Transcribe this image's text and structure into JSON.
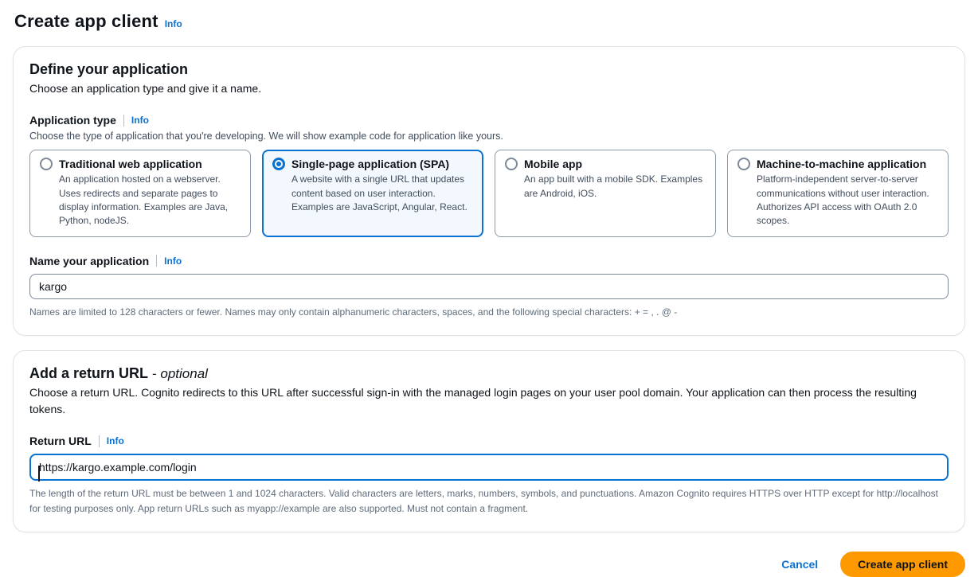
{
  "page": {
    "title": "Create app client",
    "title_info": "Info"
  },
  "define_section": {
    "heading": "Define your application",
    "subheading": "Choose an application type and give it a name.",
    "application_type": {
      "label": "Application type",
      "info": "Info",
      "description": "Choose the type of application that you're developing. We will show example code for application like yours.",
      "options": [
        {
          "title": "Traditional web application",
          "description": "An application hosted on a webserver. Uses redirects and separate pages to display information. Examples are Java, Python, nodeJS.",
          "selected": false
        },
        {
          "title": "Single-page application (SPA)",
          "description": "A website with a single URL that updates content based on user interaction. Examples are JavaScript, Angular, React.",
          "selected": true
        },
        {
          "title": "Mobile app",
          "description": "An app built with a mobile SDK. Examples are Android, iOS.",
          "selected": false
        },
        {
          "title": "Machine-to-machine application",
          "description": "Platform-independent server-to-server communications without user interaction. Authorizes API access with OAuth 2.0 scopes.",
          "selected": false
        }
      ]
    },
    "name_field": {
      "label": "Name your application",
      "info": "Info",
      "value": "kargo",
      "constraint": "Names are limited to 128 characters or fewer. Names may only contain alphanumeric characters, spaces, and the following special characters: + = , . @ -"
    }
  },
  "return_url_section": {
    "heading": "Add a return URL",
    "heading_separator": "-",
    "heading_optional": "optional",
    "description": "Choose a return URL. Cognito redirects to this URL after successful sign-in with the managed login pages on your user pool domain. Your application can then process the resulting tokens.",
    "field": {
      "label": "Return URL",
      "info": "Info",
      "value": "https://kargo.example.com/login",
      "constraint": "The length of the return URL must be between 1 and 1024 characters. Valid characters are letters, marks, numbers, symbols, and punctuations. Amazon Cognito requires HTTPS over HTTP except for http://localhost for testing purposes only. App return URLs such as myapp://example are also supported. Must not contain a fragment."
    }
  },
  "actions": {
    "cancel_label": "Cancel",
    "submit_label": "Create app client"
  },
  "colors": {
    "accent_blue": "#0972d3",
    "primary_button_orange": "#ff9900",
    "selected_tile_background": "#f2f8fd",
    "heading_text": "#0f141a",
    "secondary_text": "#414d5c",
    "helper_text": "#5f6b7a"
  }
}
